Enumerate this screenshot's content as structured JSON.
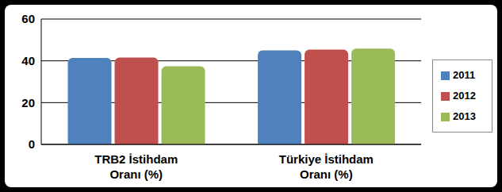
{
  "chart_data": {
    "type": "bar",
    "categories": [
      "TRB2 İstihdam Oranı (%)",
      "Türkiye İstihdam Oranı (%)"
    ],
    "series": [
      {
        "name": "2011",
        "color": "#4f81bd",
        "values": [
          41.4,
          45.0
        ]
      },
      {
        "name": "2012",
        "color": "#c0504d",
        "values": [
          41.6,
          45.4
        ]
      },
      {
        "name": "2013",
        "color": "#9bbb59",
        "values": [
          37.4,
          45.9
        ]
      }
    ],
    "ylim": [
      0,
      60
    ],
    "yticks": [
      0,
      20,
      40,
      60
    ],
    "grid": true,
    "legend": "right"
  }
}
